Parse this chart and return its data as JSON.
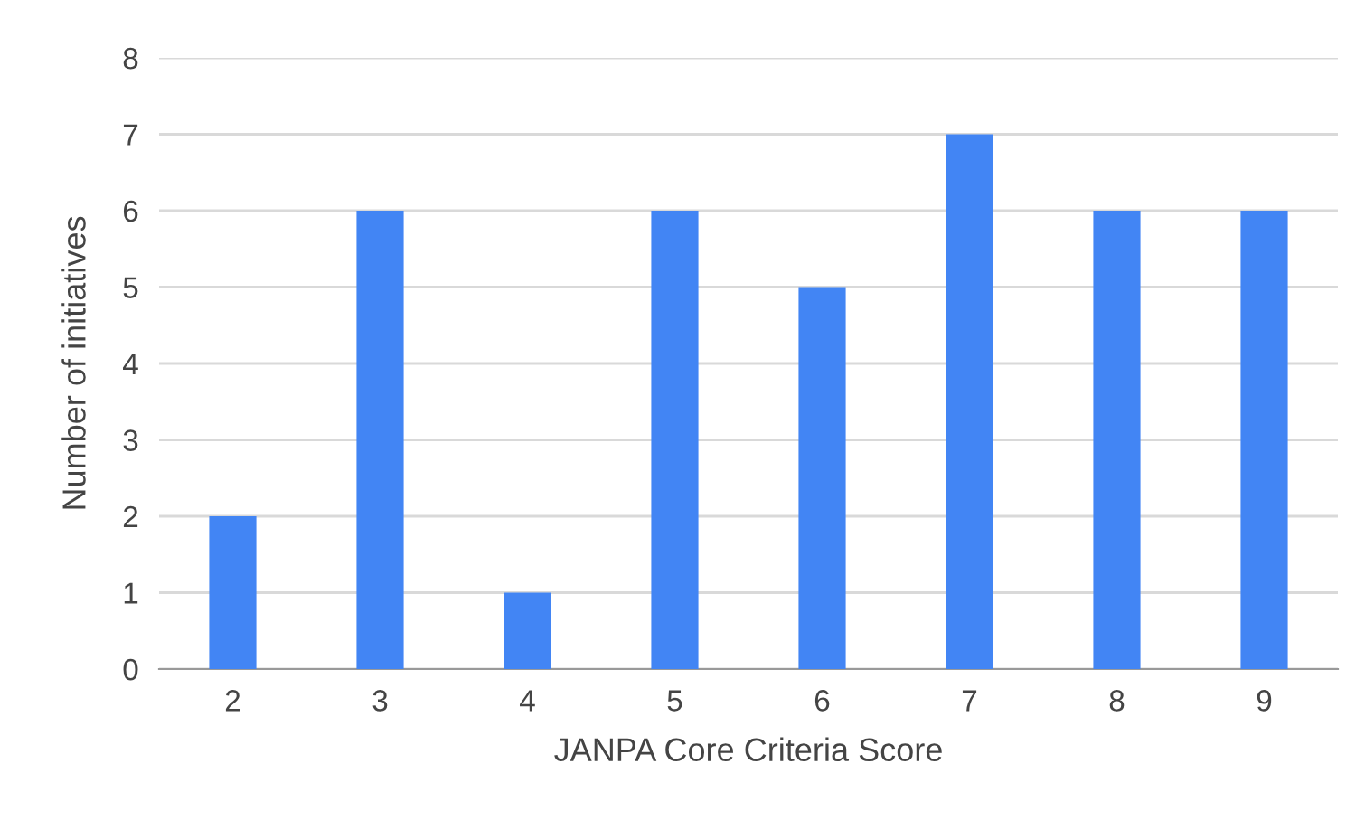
{
  "chart_data": {
    "type": "bar",
    "xlabel": "JANPA Core Criteria Score",
    "ylabel": "Number of initiatives",
    "categories": [
      "2",
      "3",
      "4",
      "5",
      "6",
      "7",
      "8",
      "9"
    ],
    "values": [
      2,
      6,
      1,
      6,
      5,
      7,
      6,
      6
    ],
    "color": "#4285f4",
    "ylim": [
      0,
      8
    ],
    "yticks": [
      0,
      1,
      2,
      3,
      4,
      5,
      6,
      7,
      8
    ],
    "grid": "y",
    "legend": false
  }
}
